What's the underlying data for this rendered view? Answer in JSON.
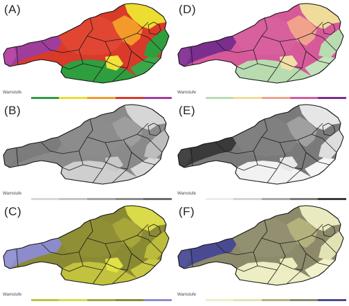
{
  "panels": [
    {
      "label": "(A)",
      "legend_label": "Warnstufe",
      "base": "#d93a2a",
      "zones": {
        "west": "#a03c9c",
        "tip": "#b64aa4",
        "central": "#e04632",
        "se": "#2f9e3e",
        "sefar": "#3aa84a",
        "east": "#2f9e3e",
        "ne": "#ecdd30",
        "nemid": "#f39a2a",
        "sw": "#f2e23a"
      },
      "legend": [
        "#ffffff",
        "#2f9e3e",
        "#ecdd30",
        "#f39a2a",
        "#d93a2a",
        "#a03c9c"
      ]
    },
    {
      "label": "(D)",
      "legend_label": "Warnstufe",
      "base": "#d65a9a",
      "zones": {
        "west": "#7a2e8e",
        "tip": "#8a3a9a",
        "central": "#d8609e",
        "se": "#b8dcb0",
        "sefar": "#c4e2bc",
        "east": "#b8dcb0",
        "ne": "#f0dc9a",
        "nemid": "#f0a28a",
        "sw": "#f2e0a8"
      },
      "legend": [
        "#ffffff",
        "#b8dcb0",
        "#f0dc9a",
        "#f0a28a",
        "#d65a9a",
        "#7a2e8e"
      ]
    },
    {
      "label": "(B)",
      "legend_label": "Warnstufe",
      "base": "#8a8a8a",
      "zones": {
        "west": "#7c7c7c",
        "tip": "#808080",
        "central": "#8c8c8c",
        "se": "#cfcfcf",
        "sefar": "#d8d8d8",
        "east": "#bdbdbd",
        "ne": "#d6d6d6",
        "nemid": "#9e9e9e",
        "sw": "#c8c8c8"
      },
      "legend": [
        "#ffffff",
        "#d8d8d8",
        "#c4c4c4",
        "#a4a4a4",
        "#8a8a8a",
        "#6c6c6c"
      ]
    },
    {
      "label": "(E)",
      "legend_label": "Warnstufe",
      "base": "#7a7a7a",
      "zones": {
        "west": "#3a3a3a",
        "tip": "#444444",
        "central": "#808080",
        "se": "#f2f2f2",
        "sefar": "#f6f6f6",
        "east": "#dedede",
        "ne": "#e6e6e6",
        "nemid": "#a0a0a0",
        "sw": "#e8e8e8"
      },
      "legend": [
        "#ffffff",
        "#ececec",
        "#d4d4d4",
        "#a8a8a8",
        "#7a7a7a",
        "#3a3a3a"
      ]
    },
    {
      "label": "(C)",
      "legend_label": "Warnstufe",
      "base": "#8a8a34",
      "zones": {
        "west": "#8c8ccc",
        "tip": "#9696d4",
        "central": "#8f8f36",
        "se": "#c2c23e",
        "sefar": "#c8c844",
        "east": "#bcbc3c",
        "ne": "#dada4a",
        "nemid": "#a6a63a",
        "sw": "#e0e048"
      },
      "legend": [
        "#ffffff",
        "#c2c23e",
        "#dada4a",
        "#a6a63a",
        "#8a8a34",
        "#8c8ccc"
      ]
    },
    {
      "label": "(F)",
      "legend_label": "Warnstufe",
      "base": "#8c8a6a",
      "zones": {
        "west": "#4a4a92",
        "tip": "#54549a",
        "central": "#929070",
        "se": "#eeeec4",
        "sefar": "#f2f2cc",
        "east": "#e2e2b4",
        "ne": "#eaeac0",
        "nemid": "#b4b27c",
        "sw": "#ececbe"
      },
      "legend": [
        "#ffffff",
        "#eeeec4",
        "#e2e2b4",
        "#b4b27c",
        "#8c8a6a",
        "#4a4a92"
      ]
    }
  ]
}
